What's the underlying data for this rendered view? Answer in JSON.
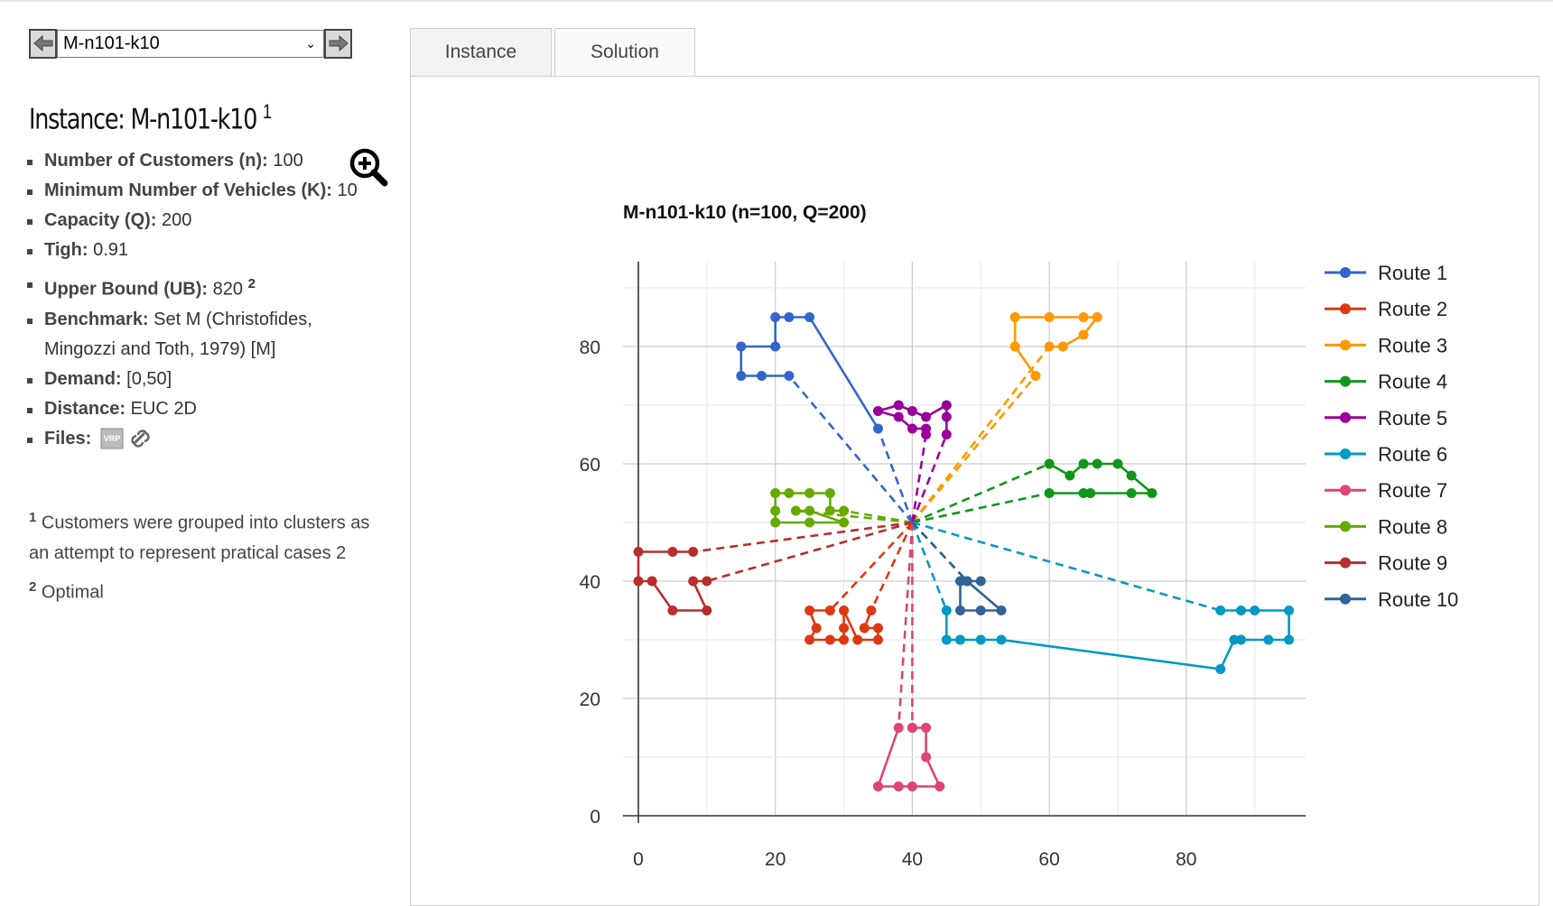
{
  "selector": {
    "value": "M-n101-k10",
    "prev_icon": "arrow-left-icon",
    "next_icon": "arrow-right-icon"
  },
  "instance": {
    "title_prefix": "Instance:",
    "name": "M-n101-k10",
    "title_sup": "1",
    "fields": [
      {
        "label": "Number of Customers (n):",
        "value": "100"
      },
      {
        "label": "Minimum Number of Vehicles (K):",
        "value": "10"
      },
      {
        "label": "Capacity (Q):",
        "value": "200"
      },
      {
        "label": "Tigh:",
        "value": "0.91"
      },
      {
        "label": "Upper Bound (UB):",
        "value": "820",
        "sup": "2"
      },
      {
        "label": "Benchmark:",
        "value": "Set M (Christofides, Mingozzi and Toth, 1979) [M]"
      },
      {
        "label": "Demand:",
        "value": "[0,50]"
      },
      {
        "label": "Distance:",
        "value": "EUC 2D"
      },
      {
        "label": "Files:",
        "value": ""
      }
    ],
    "file_icons": [
      "vrp-file-icon",
      "link-icon"
    ],
    "footnotes": [
      {
        "num": "1",
        "text": "Customers were grouped into clusters as an attempt to represent pratical cases 2"
      },
      {
        "num": "2",
        "text": "Optimal"
      }
    ]
  },
  "tabs": [
    "Instance",
    "Solution"
  ],
  "colors": {
    "route1": "#3366cc",
    "route2": "#dc3912",
    "route3": "#ff9900",
    "route4": "#109618",
    "route5": "#990099",
    "route6": "#0099c6",
    "route7": "#dd4477",
    "route8": "#66aa00",
    "route9": "#b82e2e",
    "route10": "#316395"
  },
  "chart_data": {
    "type": "line",
    "title": "M-n101-k10 (n=100, Q=200)",
    "xlim": [
      0,
      95
    ],
    "ylim": [
      0,
      90
    ],
    "xticks": [
      0,
      20,
      40,
      60,
      80
    ],
    "yticks": [
      0,
      20,
      40,
      60,
      80
    ],
    "grid": true,
    "legend": "right",
    "depot": [
      40,
      50
    ],
    "series": [
      {
        "name": "Route 1",
        "color": "#3366cc",
        "points": [
          [
            22,
            75
          ],
          [
            18,
            75
          ],
          [
            15,
            75
          ],
          [
            15,
            80
          ],
          [
            20,
            80
          ],
          [
            20,
            85
          ],
          [
            22,
            85
          ],
          [
            25,
            85
          ],
          [
            35,
            66
          ]
        ]
      },
      {
        "name": "Route 2",
        "color": "#dc3912",
        "points": [
          [
            28,
            35
          ],
          [
            25,
            35
          ],
          [
            26,
            32
          ],
          [
            25,
            30
          ],
          [
            28,
            30
          ],
          [
            30,
            30
          ],
          [
            30,
            32
          ],
          [
            30,
            35
          ],
          [
            32,
            30
          ],
          [
            35,
            30
          ],
          [
            35,
            32
          ],
          [
            33,
            32
          ],
          [
            34,
            35
          ]
        ]
      },
      {
        "name": "Route 3",
        "color": "#ff9900",
        "points": [
          [
            58,
            75
          ],
          [
            55,
            80
          ],
          [
            55,
            85
          ],
          [
            60,
            85
          ],
          [
            65,
            85
          ],
          [
            67,
            85
          ],
          [
            65,
            82
          ],
          [
            62,
            80
          ],
          [
            60,
            80
          ]
        ]
      },
      {
        "name": "Route 4",
        "color": "#109618",
        "points": [
          [
            60,
            55
          ],
          [
            65,
            55
          ],
          [
            66,
            55
          ],
          [
            72,
            55
          ],
          [
            75,
            55
          ],
          [
            72,
            58
          ],
          [
            70,
            60
          ],
          [
            67,
            60
          ],
          [
            65,
            60
          ],
          [
            63,
            58
          ],
          [
            60,
            60
          ]
        ]
      },
      {
        "name": "Route 5",
        "color": "#990099",
        "points": [
          [
            45,
            65
          ],
          [
            45,
            68
          ],
          [
            45,
            70
          ],
          [
            42,
            68
          ],
          [
            40,
            69
          ],
          [
            38,
            70
          ],
          [
            35,
            69
          ],
          [
            38,
            68
          ],
          [
            40,
            66
          ],
          [
            42,
            66
          ],
          [
            42,
            65
          ]
        ]
      },
      {
        "name": "Route 6",
        "color": "#0099c6",
        "points": [
          [
            45,
            35
          ],
          [
            45,
            30
          ],
          [
            47,
            30
          ],
          [
            50,
            30
          ],
          [
            53,
            30
          ],
          [
            85,
            25
          ],
          [
            87,
            30
          ],
          [
            88,
            30
          ],
          [
            92,
            30
          ],
          [
            95,
            30
          ],
          [
            95,
            35
          ],
          [
            90,
            35
          ],
          [
            88,
            35
          ],
          [
            85,
            35
          ]
        ]
      },
      {
        "name": "Route 7",
        "color": "#dd4477",
        "points": [
          [
            38,
            15
          ],
          [
            35,
            5
          ],
          [
            38,
            5
          ],
          [
            40,
            5
          ],
          [
            44,
            5
          ],
          [
            42,
            10
          ],
          [
            42,
            15
          ],
          [
            40,
            15
          ],
          [
            40,
            15
          ]
        ]
      },
      {
        "name": "Route 8",
        "color": "#66aa00",
        "points": [
          [
            30,
            52
          ],
          [
            28,
            52
          ],
          [
            28,
            55
          ],
          [
            25,
            55
          ],
          [
            22,
            55
          ],
          [
            20,
            55
          ],
          [
            20,
            52
          ],
          [
            20,
            50
          ],
          [
            25,
            50
          ],
          [
            30,
            50
          ],
          [
            25,
            52
          ],
          [
            23,
            52
          ]
        ]
      },
      {
        "name": "Route 9",
        "color": "#b82e2e",
        "points": [
          [
            10,
            40
          ],
          [
            8,
            40
          ],
          [
            10,
            35
          ],
          [
            5,
            35
          ],
          [
            2,
            40
          ],
          [
            0,
            40
          ],
          [
            0,
            45
          ],
          [
            5,
            45
          ],
          [
            8,
            45
          ]
        ]
      },
      {
        "name": "Route 10",
        "color": "#316395",
        "points": [
          [
            48,
            40
          ],
          [
            50,
            40
          ],
          [
            47,
            40
          ],
          [
            47,
            35
          ],
          [
            50,
            35
          ],
          [
            53,
            35
          ],
          [
            48,
            40
          ]
        ]
      }
    ]
  }
}
